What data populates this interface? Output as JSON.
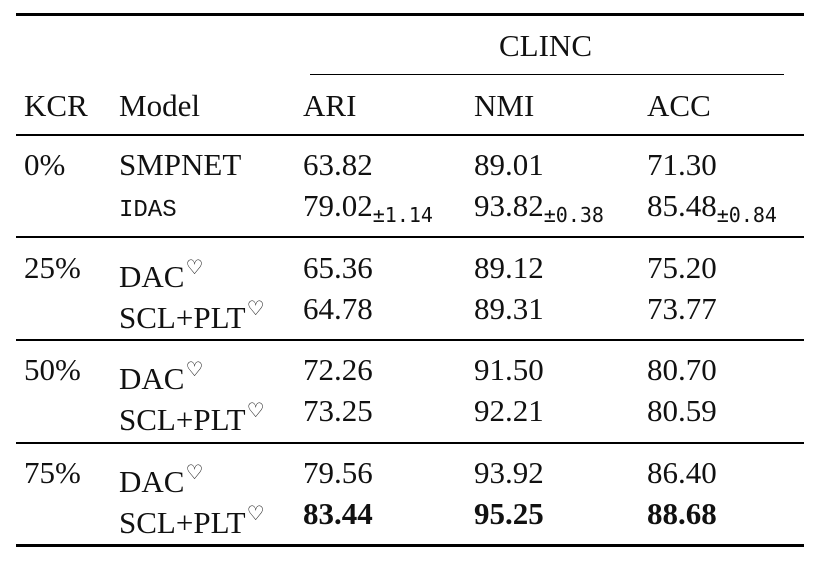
{
  "table": {
    "group_header": "CLINC",
    "headers": [
      "KCR",
      "Model",
      "ARI",
      "NMI",
      "ACC"
    ],
    "groups": [
      {
        "kcr": "0%",
        "rows": [
          {
            "model": "SMPNET",
            "mono": false,
            "mark": "",
            "ari": "63.82",
            "ari_pm": "",
            "nmi": "89.01",
            "nmi_pm": "",
            "acc": "71.30",
            "acc_pm": "",
            "bold": false
          },
          {
            "model": "IDAS",
            "mono": true,
            "mark": "",
            "ari": "79.02",
            "ari_pm": "±1.14",
            "nmi": "93.82",
            "nmi_pm": "±0.38",
            "acc": "85.48",
            "acc_pm": "±0.84",
            "bold": false
          }
        ]
      },
      {
        "kcr": "25%",
        "rows": [
          {
            "model": "DAC",
            "mono": false,
            "mark": "♡",
            "ari": "65.36",
            "ari_pm": "",
            "nmi": "89.12",
            "nmi_pm": "",
            "acc": "75.20",
            "acc_pm": "",
            "bold": false
          },
          {
            "model": "SCL+PLT",
            "mono": false,
            "mark": "♡",
            "ari": "64.78",
            "ari_pm": "",
            "nmi": "89.31",
            "nmi_pm": "",
            "acc": "73.77",
            "acc_pm": "",
            "bold": false
          }
        ]
      },
      {
        "kcr": "50%",
        "rows": [
          {
            "model": "DAC",
            "mono": false,
            "mark": "♡",
            "ari": "72.26",
            "ari_pm": "",
            "nmi": "91.50",
            "nmi_pm": "",
            "acc": "80.70",
            "acc_pm": "",
            "bold": false
          },
          {
            "model": "SCL+PLT",
            "mono": false,
            "mark": "♡",
            "ari": "73.25",
            "ari_pm": "",
            "nmi": "92.21",
            "nmi_pm": "",
            "acc": "80.59",
            "acc_pm": "",
            "bold": false
          }
        ]
      },
      {
        "kcr": "75%",
        "rows": [
          {
            "model": "DAC",
            "mono": false,
            "mark": "♡",
            "ari": "79.56",
            "ari_pm": "",
            "nmi": "93.92",
            "nmi_pm": "",
            "acc": "86.40",
            "acc_pm": "",
            "bold": false
          },
          {
            "model": "SCL+PLT",
            "mono": false,
            "mark": "♡",
            "ari": "83.44",
            "ari_pm": "",
            "nmi": "95.25",
            "nmi_pm": "",
            "acc": "88.68",
            "acc_pm": "",
            "bold": true
          }
        ]
      }
    ]
  }
}
